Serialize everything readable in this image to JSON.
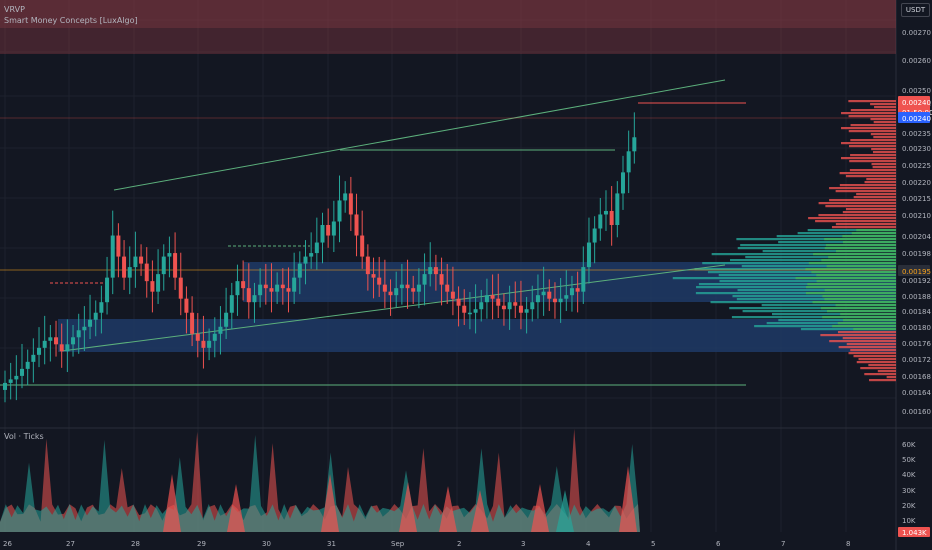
{
  "indicators": {
    "vrvp": "VRVP",
    "smc": "Smart Money Concepts [LuxAlgo]",
    "volume": "Vol · Ticks"
  },
  "currency": "USDT",
  "price_axis": {
    "ticks": [
      "0.00270",
      "0.00260",
      "0.00250",
      "0.00245",
      "0.00240",
      "0.00235",
      "0.00230",
      "0.00225",
      "0.00220",
      "0.00215",
      "0.00210",
      "0.00204",
      "0.00198",
      "0.00192",
      "0.00188",
      "0.00184",
      "0.00180",
      "0.00176",
      "0.00172",
      "0.00168",
      "0.00164",
      "0.00160"
    ],
    "last_price_label": "0.00240",
    "countdown_label": "01:50:00",
    "mark_price_label": "0.00240",
    "poc_label": "0.00195"
  },
  "volume_axis": {
    "ticks": [
      "60K",
      "50K",
      "40K",
      "30K",
      "20K",
      "10K"
    ],
    "current_label": "1.043K"
  },
  "time_axis": {
    "labels": [
      "26",
      "27",
      "28",
      "29",
      "30",
      "31",
      "Sep",
      "2",
      "3",
      "4",
      "5",
      "6",
      "7",
      "8"
    ]
  },
  "colors": {
    "background": "#131722",
    "up": "#26a69a",
    "down": "#ef5350",
    "supply_zone": "#8a3a44",
    "demand_zone": "#1e3a66",
    "channel_line": "#5cb07c",
    "poc": "#f7a21b"
  },
  "chart_data": {
    "type": "candlestick",
    "symbol_indicators": [
      "VRVP",
      "Smart Money Concepts [LuxAlgo]"
    ],
    "y_axis": {
      "min": 0.0016,
      "max": 0.00275
    },
    "last_price": 0.0024,
    "poc_price": 0.00195,
    "candles_close": [
      0.0017,
      0.00171,
      0.00172,
      0.00174,
      0.00176,
      0.00178,
      0.0018,
      0.00182,
      0.00183,
      0.00181,
      0.00179,
      0.00181,
      0.00183,
      0.00185,
      0.00186,
      0.00188,
      0.0019,
      0.00193,
      0.002,
      0.00212,
      0.00206,
      0.002,
      0.00203,
      0.00206,
      0.00204,
      0.00199,
      0.00196,
      0.00201,
      0.00206,
      0.00207,
      0.002,
      0.00194,
      0.0019,
      0.00184,
      0.00182,
      0.0018,
      0.00182,
      0.00184,
      0.00186,
      0.0019,
      0.00195,
      0.00199,
      0.00197,
      0.00193,
      0.00195,
      0.00198,
      0.00197,
      0.00196,
      0.00198,
      0.00197,
      0.00196,
      0.002,
      0.00204,
      0.00206,
      0.00207,
      0.0021,
      0.00215,
      0.00212,
      0.00216,
      0.00222,
      0.00224,
      0.00218,
      0.00212,
      0.00206,
      0.00201,
      0.002,
      0.00198,
      0.00196,
      0.00195,
      0.00197,
      0.00198,
      0.00197,
      0.00196,
      0.00198,
      0.00201,
      0.00203,
      0.00201,
      0.00198,
      0.00196,
      0.00194,
      0.00192,
      0.0019,
      0.0019,
      0.00191,
      0.00193,
      0.00195,
      0.00194,
      0.00192,
      0.00191,
      0.00193,
      0.00192,
      0.0019,
      0.00191,
      0.00193,
      0.00195,
      0.00196,
      0.00194,
      0.00193,
      0.00194,
      0.00195,
      0.00197,
      0.00196,
      0.00203,
      0.0021,
      0.00214,
      0.00218,
      0.00219,
      0.00215,
      0.00224,
      0.0023,
      0.00236,
      0.0024
    ],
    "volume_axis_max": 60000,
    "channel_upper": [
      [
        0.00217,
        0.0025
      ]
    ],
    "channel_lower": [
      [
        0.00174,
        0.00196
      ]
    ],
    "zones": {
      "supply_top": [
        0.00262,
        0.00275
      ],
      "demand_upper": [
        0.00188,
        0.00197
      ],
      "demand_lower": [
        0.00173,
        0.00183
      ]
    },
    "time_labels": [
      "26",
      "27",
      "28",
      "29",
      "30",
      "31",
      "Sep",
      "2",
      "3",
      "4",
      "5",
      "6",
      "7",
      "8"
    ]
  }
}
